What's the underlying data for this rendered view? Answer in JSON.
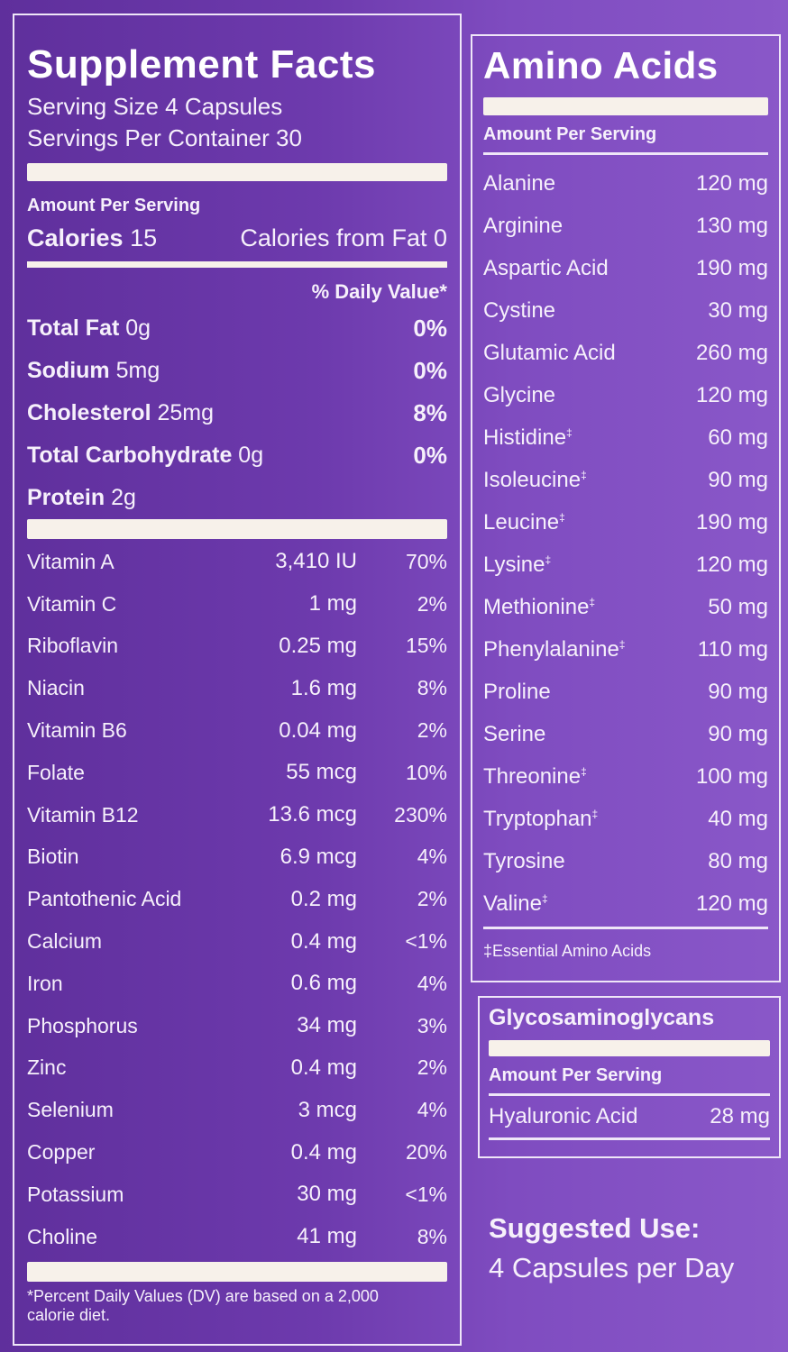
{
  "supplement_facts": {
    "title": "Supplement Facts",
    "serving_size": "Serving Size 4 Capsules",
    "servings_per_container": "Servings Per Container 30",
    "amount_per_serving": "Amount Per Serving",
    "calories_label": "Calories",
    "calories_value": "15",
    "calories_from_fat": "Calories from Fat 0",
    "daily_value_header": "% Daily Value*",
    "macros": [
      {
        "name": "Total Fat",
        "amount": "0g",
        "dv": "0%"
      },
      {
        "name": "Sodium",
        "amount": "5mg",
        "dv": "0%"
      },
      {
        "name": "Cholesterol",
        "amount": "25mg",
        "dv": "8%"
      },
      {
        "name": "Total Carbohydrate",
        "amount": "0g",
        "dv": "0%"
      },
      {
        "name": "Protein",
        "amount": "2g",
        "dv": ""
      }
    ],
    "nutrients": [
      {
        "name": "Vitamin A",
        "amount": "3,410 IU",
        "dv": "70%"
      },
      {
        "name": "Vitamin C",
        "amount": "1 mg",
        "dv": "2%"
      },
      {
        "name": "Riboflavin",
        "amount": "0.25 mg",
        "dv": "15%"
      },
      {
        "name": "Niacin",
        "amount": "1.6 mg",
        "dv": "8%"
      },
      {
        "name": "Vitamin B6",
        "amount": "0.04 mg",
        "dv": "2%"
      },
      {
        "name": "Folate",
        "amount": "55 mcg",
        "dv": "10%"
      },
      {
        "name": "Vitamin B12",
        "amount": "13.6 mcg",
        "dv": "230%"
      },
      {
        "name": "Biotin",
        "amount": "6.9 mcg",
        "dv": "4%"
      },
      {
        "name": "Pantothenic Acid",
        "amount": "0.2 mg",
        "dv": "2%"
      },
      {
        "name": "Calcium",
        "amount": "0.4 mg",
        "dv": "<1%"
      },
      {
        "name": "Iron",
        "amount": "0.6 mg",
        "dv": "4%"
      },
      {
        "name": "Phosphorus",
        "amount": "34 mg",
        "dv": "3%"
      },
      {
        "name": "Zinc",
        "amount": "0.4 mg",
        "dv": "2%"
      },
      {
        "name": "Selenium",
        "amount": "3 mcg",
        "dv": "4%"
      },
      {
        "name": "Copper",
        "amount": "0.4 mg",
        "dv": "20%"
      },
      {
        "name": "Potassium",
        "amount": "30 mg",
        "dv": "<1%"
      },
      {
        "name": "Choline",
        "amount": "41 mg",
        "dv": "8%"
      }
    ],
    "footnote": "*Percent Daily Values (DV) are based on a 2,000 calorie diet."
  },
  "amino_acids": {
    "title": "Amino Acids",
    "amount_per_serving": "Amount Per Serving",
    "items": [
      {
        "name": "Alanine",
        "mark": "",
        "amount": "120 mg"
      },
      {
        "name": "Arginine",
        "mark": "",
        "amount": "130 mg"
      },
      {
        "name": "Aspartic Acid",
        "mark": "",
        "amount": "190 mg"
      },
      {
        "name": "Cystine",
        "mark": "",
        "amount": "30 mg"
      },
      {
        "name": "Glutamic Acid",
        "mark": "",
        "amount": "260 mg"
      },
      {
        "name": "Glycine",
        "mark": "",
        "amount": "120 mg"
      },
      {
        "name": "Histidine",
        "mark": "‡",
        "amount": "60 mg"
      },
      {
        "name": "Isoleucine",
        "mark": "‡",
        "amount": "90 mg"
      },
      {
        "name": "Leucine",
        "mark": "‡",
        "amount": "190 mg"
      },
      {
        "name": "Lysine",
        "mark": "‡",
        "amount": "120 mg"
      },
      {
        "name": "Methionine",
        "mark": "‡",
        "amount": "50 mg"
      },
      {
        "name": "Phenylalanine",
        "mark": "‡",
        "amount": "110 mg"
      },
      {
        "name": "Proline",
        "mark": "",
        "amount": "90 mg"
      },
      {
        "name": "Serine",
        "mark": "",
        "amount": "90 mg"
      },
      {
        "name": "Threonine",
        "mark": "‡",
        "amount": "100 mg"
      },
      {
        "name": "Tryptophan",
        "mark": "‡",
        "amount": "40 mg"
      },
      {
        "name": "Tyrosine",
        "mark": "",
        "amount": "80 mg"
      },
      {
        "name": "Valine",
        "mark": "‡",
        "amount": "120 mg"
      }
    ],
    "footnote": "‡Essential Amino Acids"
  },
  "glycosaminoglycans": {
    "title": "Glycosaminoglycans",
    "amount_per_serving": "Amount Per Serving",
    "items": [
      {
        "name": "Hyaluronic Acid",
        "amount": "28 mg"
      }
    ]
  },
  "suggested_use": {
    "heading": "Suggested Use:",
    "text": "4 Capsules per Day"
  }
}
